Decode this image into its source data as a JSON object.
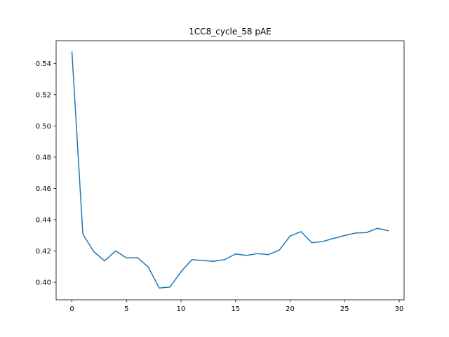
{
  "chart_data": {
    "type": "line",
    "title": "1CC8_cycle_58 pAE",
    "xlabel": "",
    "ylabel": "",
    "xlim": [
      -1.45,
      30.45
    ],
    "ylim": [
      0.3888,
      0.5545
    ],
    "grid": false,
    "x_ticks": [
      0,
      5,
      10,
      15,
      20,
      25,
      30
    ],
    "x_tick_labels": [
      "0",
      "5",
      "10",
      "15",
      "20",
      "25",
      "30"
    ],
    "y_ticks": [
      0.4,
      0.42,
      0.44,
      0.46,
      0.48,
      0.5,
      0.52,
      0.54
    ],
    "y_tick_labels": [
      "0.40",
      "0.42",
      "0.44",
      "0.46",
      "0.48",
      "0.50",
      "0.52",
      "0.54"
    ],
    "series": [
      {
        "color": "#1f77b4",
        "x": [
          0,
          1,
          2,
          3,
          4,
          5,
          6,
          7,
          8,
          9,
          10,
          11,
          12,
          13,
          14,
          15,
          16,
          17,
          18,
          19,
          20,
          21,
          22,
          23,
          24,
          25,
          26,
          27,
          28,
          29
        ],
        "y": [
          0.5473,
          0.4308,
          0.4196,
          0.4137,
          0.4201,
          0.4156,
          0.4158,
          0.4097,
          0.3963,
          0.397,
          0.4068,
          0.4145,
          0.4139,
          0.4134,
          0.4145,
          0.4181,
          0.4172,
          0.4183,
          0.4177,
          0.4205,
          0.4296,
          0.4324,
          0.4253,
          0.4261,
          0.4281,
          0.4299,
          0.4315,
          0.4318,
          0.4345,
          0.433
        ]
      }
    ]
  }
}
